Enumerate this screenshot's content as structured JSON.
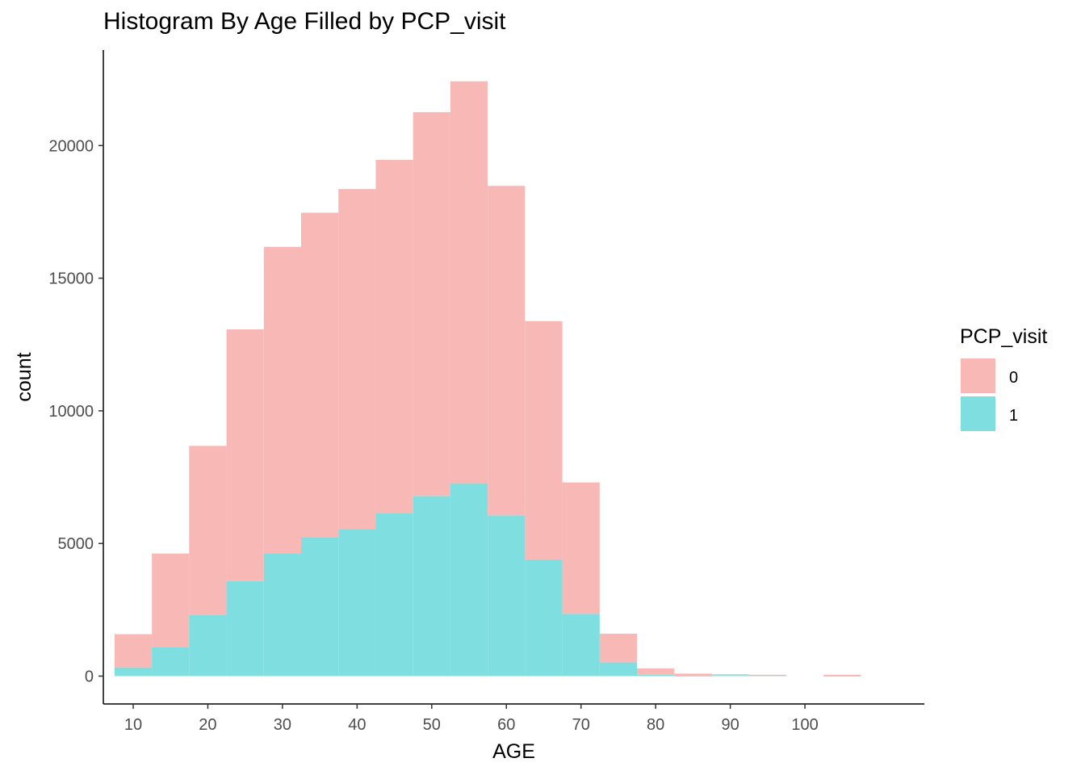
{
  "chart_data": {
    "type": "bar",
    "title": "Histogram By Age Filled by PCP_visit",
    "xlabel": "AGE",
    "ylabel": "count",
    "x_ticks": [
      10,
      20,
      30,
      40,
      50,
      60,
      70,
      80,
      90,
      100
    ],
    "y_ticks": [
      0,
      5000,
      10000,
      15000,
      20000
    ],
    "xlim": [
      6,
      116
    ],
    "ylim": [
      -1050,
      23600
    ],
    "bin_width": 5,
    "bin_starts": [
      7.5,
      12.5,
      17.5,
      22.5,
      27.5,
      32.5,
      37.5,
      42.5,
      47.5,
      52.5,
      57.5,
      62.5,
      67.5,
      72.5,
      77.5,
      82.5,
      87.5,
      92.5,
      97.5,
      102.5
    ],
    "stacked": true,
    "grid": false,
    "legend": {
      "title": "PCP_visit",
      "position": "right"
    },
    "series": [
      {
        "name": "0",
        "color": "#F8B9B6",
        "values": [
          1250,
          3520,
          6380,
          9490,
          11550,
          12250,
          12810,
          13310,
          14470,
          15150,
          12420,
          8980,
          4950,
          1080,
          240,
          80,
          30,
          20,
          0,
          40
        ]
      },
      {
        "name": "1",
        "color": "#7FDFE0",
        "values": [
          330,
          1100,
          2300,
          3580,
          4630,
          5220,
          5550,
          6150,
          6790,
          7270,
          6060,
          4400,
          2350,
          520,
          50,
          15,
          40,
          30,
          0,
          10
        ]
      }
    ]
  }
}
